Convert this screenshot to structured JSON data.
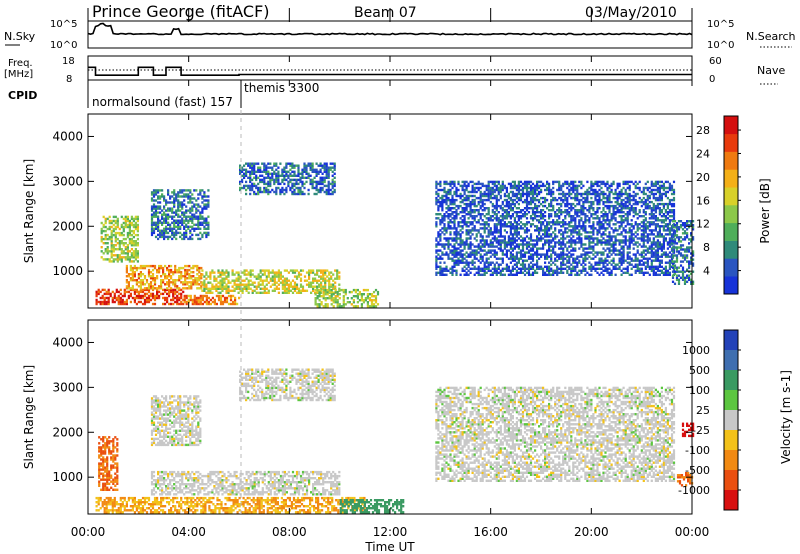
{
  "header": {
    "station": "Prince George (fitACF)",
    "beam": "Beam 07",
    "date": "03/May/2010"
  },
  "noise_panel": {
    "left_label": "N.Sky",
    "right_label": "N.Search",
    "left_ticks": [
      "10^5",
      "10^0"
    ],
    "right_ticks": [
      "10^5",
      "10^0"
    ]
  },
  "freq_panel": {
    "left_label_1": "Freq.",
    "left_label_2": "[MHz]",
    "right_label": "Nave",
    "left_ticks": [
      "18",
      "8"
    ],
    "right_ticks": [
      "60",
      "0"
    ]
  },
  "cpid": {
    "label": "CPID",
    "programs": [
      {
        "name": "normalsound (fast) 157",
        "start_hour": 0
      },
      {
        "name": "themis 3300",
        "start_hour": 6
      }
    ]
  },
  "time_axis": {
    "label": "Time UT",
    "ticks": [
      "00:00",
      "04:00",
      "08:00",
      "12:00",
      "16:00",
      "20:00",
      "00:00"
    ]
  },
  "range_axis": {
    "label": "Slant Range [km]",
    "ticks": [
      "1000",
      "2000",
      "3000",
      "4000"
    ]
  },
  "power_colorbar": {
    "label": "Power [dB]",
    "ticks": [
      "4",
      "8",
      "12",
      "16",
      "20",
      "24",
      "28"
    ],
    "colors": [
      "#1733d8",
      "#2a55c0",
      "#2f8a7a",
      "#4fae5a",
      "#8cc84a",
      "#d8d12a",
      "#f4b018",
      "#ef7a10",
      "#e83a0c",
      "#d40f0f"
    ]
  },
  "velocity_colorbar": {
    "label": "Velocity [m s-1]",
    "ticks": [
      "1000",
      "500",
      "100",
      "25",
      "-25",
      "-100",
      "-500",
      "-1000"
    ],
    "colors": [
      "#2342b8",
      "#3f6fb0",
      "#3a9a62",
      "#5cc640",
      "#c8c8c8",
      "#f3c21a",
      "#f28a12",
      "#ea4f10",
      "#d81010"
    ]
  },
  "chart_data": {
    "type": "heatmap",
    "x_range_hours": [
      0,
      24
    ],
    "y_range_km": [
      180,
      4500
    ],
    "noise_sky_level": 1.0,
    "frequency_mhz": [
      {
        "start": 0.0,
        "end": 0.3,
        "value": 13.3
      },
      {
        "start": 0.3,
        "end": 2.0,
        "value": 10.0
      },
      {
        "start": 2.0,
        "end": 2.6,
        "value": 13.3
      },
      {
        "start": 2.6,
        "end": 3.1,
        "value": 10.0
      },
      {
        "start": 3.1,
        "end": 3.7,
        "value": 13.3
      },
      {
        "start": 3.7,
        "end": 6.0,
        "value": 10.0
      },
      {
        "start": 6.0,
        "end": 24.0,
        "value": 10.3
      }
    ],
    "power_regions": [
      {
        "t0": 0.3,
        "t1": 3.8,
        "r0": 250,
        "r1": 600,
        "level": 26
      },
      {
        "t0": 3.8,
        "t1": 6.0,
        "r0": 250,
        "r1": 450,
        "level": 22
      },
      {
        "t0": 1.5,
        "t1": 4.5,
        "r0": 600,
        "r1": 1100,
        "level": 20
      },
      {
        "t0": 4.5,
        "t1": 10.0,
        "r0": 500,
        "r1": 1000,
        "level": 16
      },
      {
        "t0": 9.0,
        "t1": 11.5,
        "r0": 200,
        "r1": 600,
        "level": 14
      },
      {
        "t0": 0.5,
        "t1": 2.0,
        "r0": 1200,
        "r1": 2200,
        "level": 14
      },
      {
        "t0": 2.5,
        "t1": 4.8,
        "r0": 1700,
        "r1": 2800,
        "level": 6
      },
      {
        "t0": 6.0,
        "t1": 9.8,
        "r0": 2700,
        "r1": 3400,
        "level": 5
      },
      {
        "t0": 13.8,
        "t1": 23.3,
        "r0": 900,
        "r1": 3000,
        "level": 4
      },
      {
        "t0": 23.2,
        "t1": 24.0,
        "r0": 700,
        "r1": 2100,
        "level": 6
      }
    ],
    "velocity_regions": [
      {
        "t0": 0.3,
        "t1": 11.0,
        "r0": 200,
        "r1": 550,
        "velocity": -100
      },
      {
        "t0": 0.4,
        "t1": 1.2,
        "r0": 700,
        "r1": 1900,
        "velocity": -500
      },
      {
        "t0": 2.5,
        "t1": 10.0,
        "r0": 600,
        "r1": 1100,
        "velocity": 0
      },
      {
        "t0": 2.5,
        "t1": 4.5,
        "r0": 1700,
        "r1": 2800,
        "velocity": 0
      },
      {
        "t0": 6.0,
        "t1": 9.8,
        "r0": 2700,
        "r1": 3400,
        "velocity": 0
      },
      {
        "t0": 10.0,
        "t1": 12.5,
        "r0": 200,
        "r1": 500,
        "velocity": 100
      },
      {
        "t0": 13.8,
        "t1": 23.3,
        "r0": 900,
        "r1": 3000,
        "velocity": 0
      },
      {
        "t0": 23.4,
        "t1": 24.0,
        "r0": 800,
        "r1": 1100,
        "velocity": -500
      },
      {
        "t0": 23.6,
        "t1": 24.0,
        "r0": 1900,
        "r1": 2200,
        "velocity": -1000
      }
    ]
  }
}
